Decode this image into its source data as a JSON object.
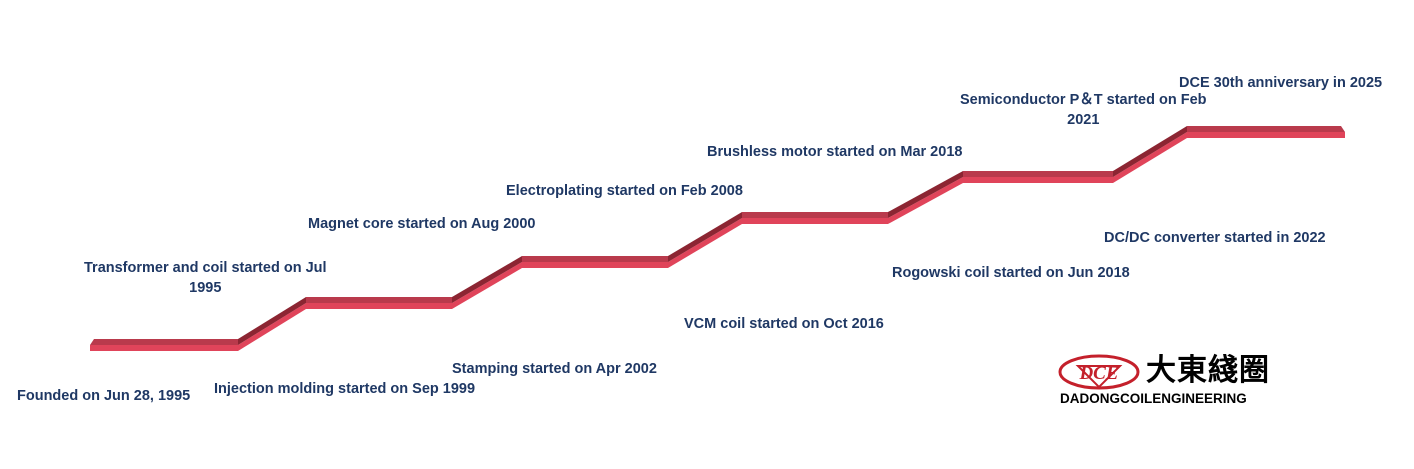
{
  "timeline": {
    "events": [
      {
        "label": "Founded on Jun 28, 1995"
      },
      {
        "label": "Transformer and coil started on Jul\n1995"
      },
      {
        "label": "Injection molding started on Sep 1999"
      },
      {
        "label": "Magnet core started on Aug 2000"
      },
      {
        "label": "Stamping started on Apr 2002"
      },
      {
        "label": "Electroplating started on Feb 2008"
      },
      {
        "label": "VCM coil started on Oct 2016"
      },
      {
        "label": "Brushless motor started on Mar 2018"
      },
      {
        "label": "Rogowski coil started on Jun 2018"
      },
      {
        "label": "Semiconductor P＆T started on  Feb\n2021"
      },
      {
        "label": "DC/DC converter started in 2022"
      },
      {
        "label": "DCE 30th anniversary in 2025"
      }
    ],
    "colors": {
      "text": "#1f3864",
      "stair_top": "#b93a4c",
      "stair_front": "#e0445a",
      "stair_dark": "#8c2532"
    }
  },
  "logo": {
    "mark": "DCE",
    "chinese": "大東綫圈",
    "english": "DADONGCOILENGINEERING",
    "color": "#c4202b"
  }
}
